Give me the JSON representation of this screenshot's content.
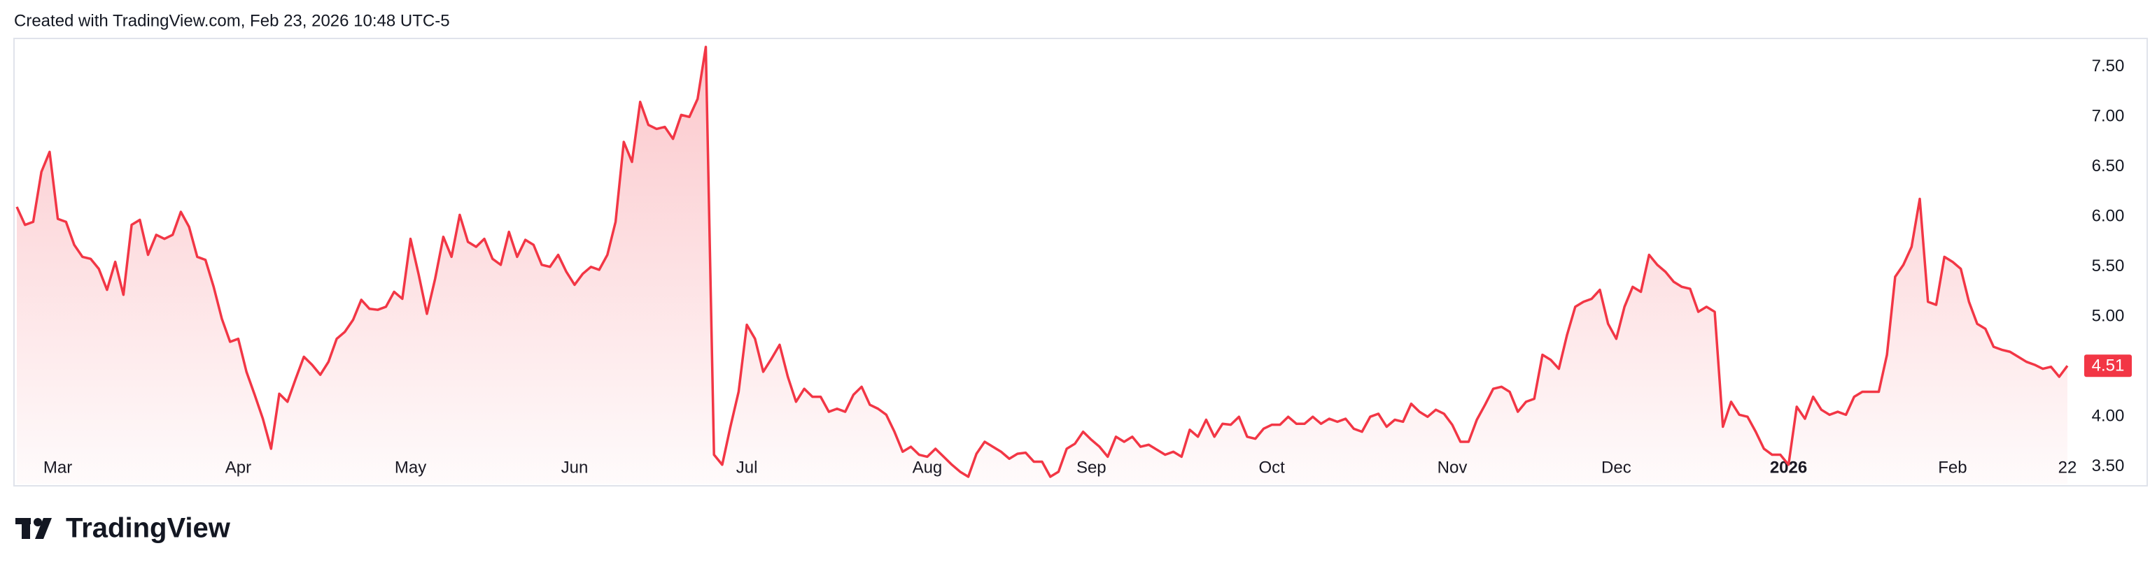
{
  "header": {
    "credit": "Created with TradingView.com, Feb 23, 2026 10:48 UTC-5"
  },
  "footer": {
    "brand": "TradingView"
  },
  "chart_data": {
    "type": "area",
    "color": "#f23645",
    "grid": false,
    "ylim": [
      3.33,
      7.75
    ],
    "yticks": [
      {
        "value": 3.5,
        "label": "3.50"
      },
      {
        "value": 4,
        "label": "4.00"
      },
      {
        "value": 4.5,
        "label": "4.50"
      },
      {
        "value": 5,
        "label": "5.00"
      },
      {
        "value": 5.5,
        "label": "5.50"
      },
      {
        "value": 6,
        "label": "6.00"
      },
      {
        "value": 6.5,
        "label": "6.50"
      },
      {
        "value": 7,
        "label": "7.00"
      },
      {
        "value": 7.5,
        "label": "7.50"
      }
    ],
    "categories": [
      null,
      null,
      null,
      null,
      null,
      "Mar",
      null,
      null,
      null,
      null,
      null,
      null,
      null,
      null,
      null,
      null,
      null,
      null,
      null,
      null,
      null,
      null,
      null,
      null,
      null,
      null,
      null,
      "Apr",
      null,
      null,
      null,
      null,
      null,
      null,
      null,
      null,
      null,
      null,
      null,
      null,
      null,
      null,
      null,
      null,
      null,
      null,
      null,
      null,
      "May",
      null,
      null,
      null,
      null,
      null,
      null,
      null,
      null,
      null,
      null,
      null,
      null,
      null,
      null,
      null,
      null,
      null,
      null,
      null,
      "Jun",
      null,
      null,
      null,
      null,
      null,
      null,
      null,
      null,
      null,
      null,
      null,
      null,
      null,
      null,
      null,
      null,
      null,
      null,
      null,
      null,
      "Jul",
      null,
      null,
      null,
      null,
      null,
      null,
      null,
      null,
      null,
      null,
      null,
      null,
      null,
      null,
      null,
      null,
      null,
      null,
      null,
      null,
      null,
      "Aug",
      null,
      null,
      null,
      null,
      null,
      null,
      null,
      null,
      null,
      null,
      null,
      null,
      null,
      null,
      null,
      null,
      null,
      null,
      null,
      "Sep",
      null,
      null,
      null,
      null,
      null,
      null,
      null,
      null,
      null,
      null,
      null,
      null,
      null,
      null,
      null,
      null,
      null,
      null,
      null,
      null,
      null,
      "Oct",
      null,
      null,
      null,
      null,
      null,
      null,
      null,
      null,
      null,
      null,
      null,
      null,
      null,
      null,
      null,
      null,
      null,
      null,
      null,
      null,
      null,
      "Nov",
      null,
      null,
      null,
      null,
      null,
      null,
      null,
      null,
      null,
      null,
      null,
      null,
      null,
      null,
      null,
      null,
      null,
      null,
      null,
      "Dec",
      null,
      null,
      null,
      null,
      null,
      null,
      null,
      null,
      null,
      null,
      null,
      null,
      null,
      null,
      null,
      null,
      null,
      null,
      null,
      null,
      "2026",
      null,
      null,
      null,
      null,
      null,
      null,
      null,
      null,
      null,
      null,
      null,
      null,
      null,
      null,
      null,
      null,
      null,
      null,
      null,
      "Feb",
      null,
      null,
      null,
      null,
      null,
      null,
      null,
      null,
      null,
      null,
      null,
      null,
      null,
      "22"
    ],
    "values": [
      6.1,
      5.92,
      5.95,
      6.45,
      6.65,
      5.98,
      5.95,
      5.72,
      5.6,
      5.58,
      5.48,
      5.27,
      5.55,
      5.22,
      5.92,
      5.97,
      5.62,
      5.82,
      5.78,
      5.82,
      6.05,
      5.9,
      5.6,
      5.57,
      5.3,
      4.98,
      4.75,
      4.78,
      4.45,
      4.22,
      3.98,
      3.68,
      4.23,
      4.15,
      4.38,
      4.6,
      4.52,
      4.42,
      4.55,
      4.78,
      4.85,
      4.97,
      5.17,
      5.08,
      5.07,
      5.1,
      5.25,
      5.18,
      5.78,
      5.42,
      5.03,
      5.38,
      5.8,
      5.6,
      6.02,
      5.75,
      5.7,
      5.78,
      5.58,
      5.52,
      5.85,
      5.6,
      5.77,
      5.72,
      5.52,
      5.5,
      5.62,
      5.45,
      5.32,
      5.43,
      5.5,
      5.47,
      5.62,
      5.95,
      6.75,
      6.55,
      7.15,
      6.92,
      6.88,
      6.9,
      6.78,
      7.02,
      7.0,
      7.18,
      7.7,
      3.62,
      3.52,
      3.9,
      4.25,
      4.92,
      4.78,
      4.45,
      4.58,
      4.72,
      4.4,
      4.15,
      4.28,
      4.2,
      4.2,
      4.05,
      4.08,
      4.05,
      4.22,
      4.3,
      4.12,
      4.08,
      4.02,
      3.85,
      3.65,
      3.7,
      3.62,
      3.6,
      3.68,
      3.6,
      3.52,
      3.45,
      3.4,
      3.63,
      3.75,
      3.7,
      3.65,
      3.58,
      3.63,
      3.64,
      3.55,
      3.55,
      3.4,
      3.45,
      3.68,
      3.73,
      3.85,
      3.77,
      3.7,
      3.6,
      3.8,
      3.75,
      3.8,
      3.7,
      3.72,
      3.67,
      3.62,
      3.65,
      3.6,
      3.87,
      3.8,
      3.97,
      3.8,
      3.93,
      3.92,
      4.0,
      3.8,
      3.78,
      3.88,
      3.92,
      3.92,
      4.0,
      3.93,
      3.93,
      4.0,
      3.93,
      3.98,
      3.95,
      3.98,
      3.88,
      3.85,
      4.0,
      4.03,
      3.9,
      3.97,
      3.95,
      4.13,
      4.05,
      4.0,
      4.07,
      4.03,
      3.92,
      3.75,
      3.75,
      3.97,
      4.12,
      4.28,
      4.3,
      4.25,
      4.05,
      4.15,
      4.18,
      4.62,
      4.57,
      4.48,
      4.82,
      5.1,
      5.15,
      5.18,
      5.27,
      4.93,
      4.78,
      5.1,
      5.3,
      5.25,
      5.62,
      5.52,
      5.45,
      5.35,
      5.3,
      5.28,
      5.05,
      5.1,
      5.05,
      3.9,
      4.15,
      4.02,
      4.0,
      3.85,
      3.68,
      3.62,
      3.62,
      3.52,
      4.1,
      3.98,
      4.2,
      4.07,
      4.02,
      4.05,
      4.02,
      4.2,
      4.25,
      4.25,
      4.25,
      4.62,
      5.4,
      5.52,
      5.7,
      6.18,
      5.15,
      5.12,
      5.6,
      5.55,
      5.48,
      5.15,
      4.93,
      4.88,
      4.7,
      4.67,
      4.65,
      4.6,
      4.55,
      4.52,
      4.48,
      4.5,
      4.4,
      4.51
    ]
  }
}
